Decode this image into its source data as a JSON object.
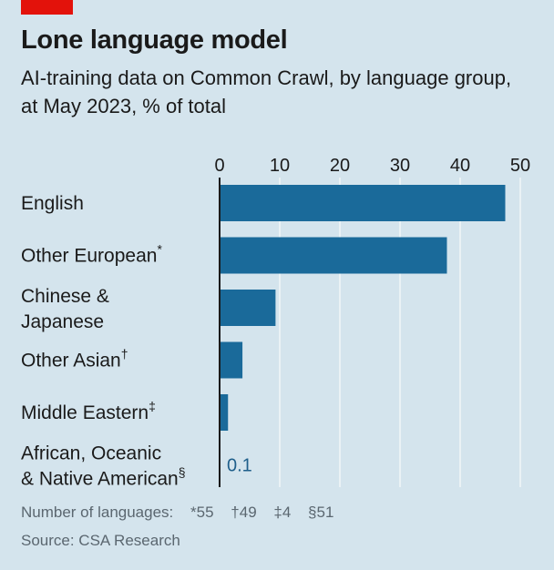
{
  "header": {
    "title": "Lone language model",
    "subtitle": "AI-training data on Common Crawl, by language group, at May 2023, % of total"
  },
  "colors": {
    "bar": "#1a6a9a",
    "accent_tag": "#e3120b",
    "background": "#d4e4ed",
    "grid": "#f2f6f8"
  },
  "chart_data": {
    "type": "bar",
    "orientation": "horizontal",
    "categories": [
      {
        "line1": "English",
        "line2": "",
        "mark": ""
      },
      {
        "line1": "Other European",
        "line2": "",
        "mark": "*"
      },
      {
        "line1": "Chinese &",
        "line2": "Japanese",
        "mark": ""
      },
      {
        "line1": "Other Asian",
        "line2": "",
        "mark": "†"
      },
      {
        "line1": "Middle Eastern",
        "line2": "",
        "mark": "‡"
      },
      {
        "line1": "African, Oceanic",
        "line2": "& Native American",
        "mark": "§"
      }
    ],
    "values": [
      47.5,
      37.8,
      9.3,
      3.8,
      1.4,
      0.1
    ],
    "data_labels": [
      "",
      "",
      "",
      "",
      "",
      "0.1"
    ],
    "xlim": [
      0,
      50
    ],
    "ticks": [
      0,
      10,
      20,
      30,
      40,
      50
    ],
    "tick_position": "top",
    "grid": true
  },
  "footnote": {
    "lead": "Number of languages:",
    "items": [
      "*55",
      "†49",
      "‡4",
      "§51"
    ]
  },
  "source": "Source: CSA Research"
}
